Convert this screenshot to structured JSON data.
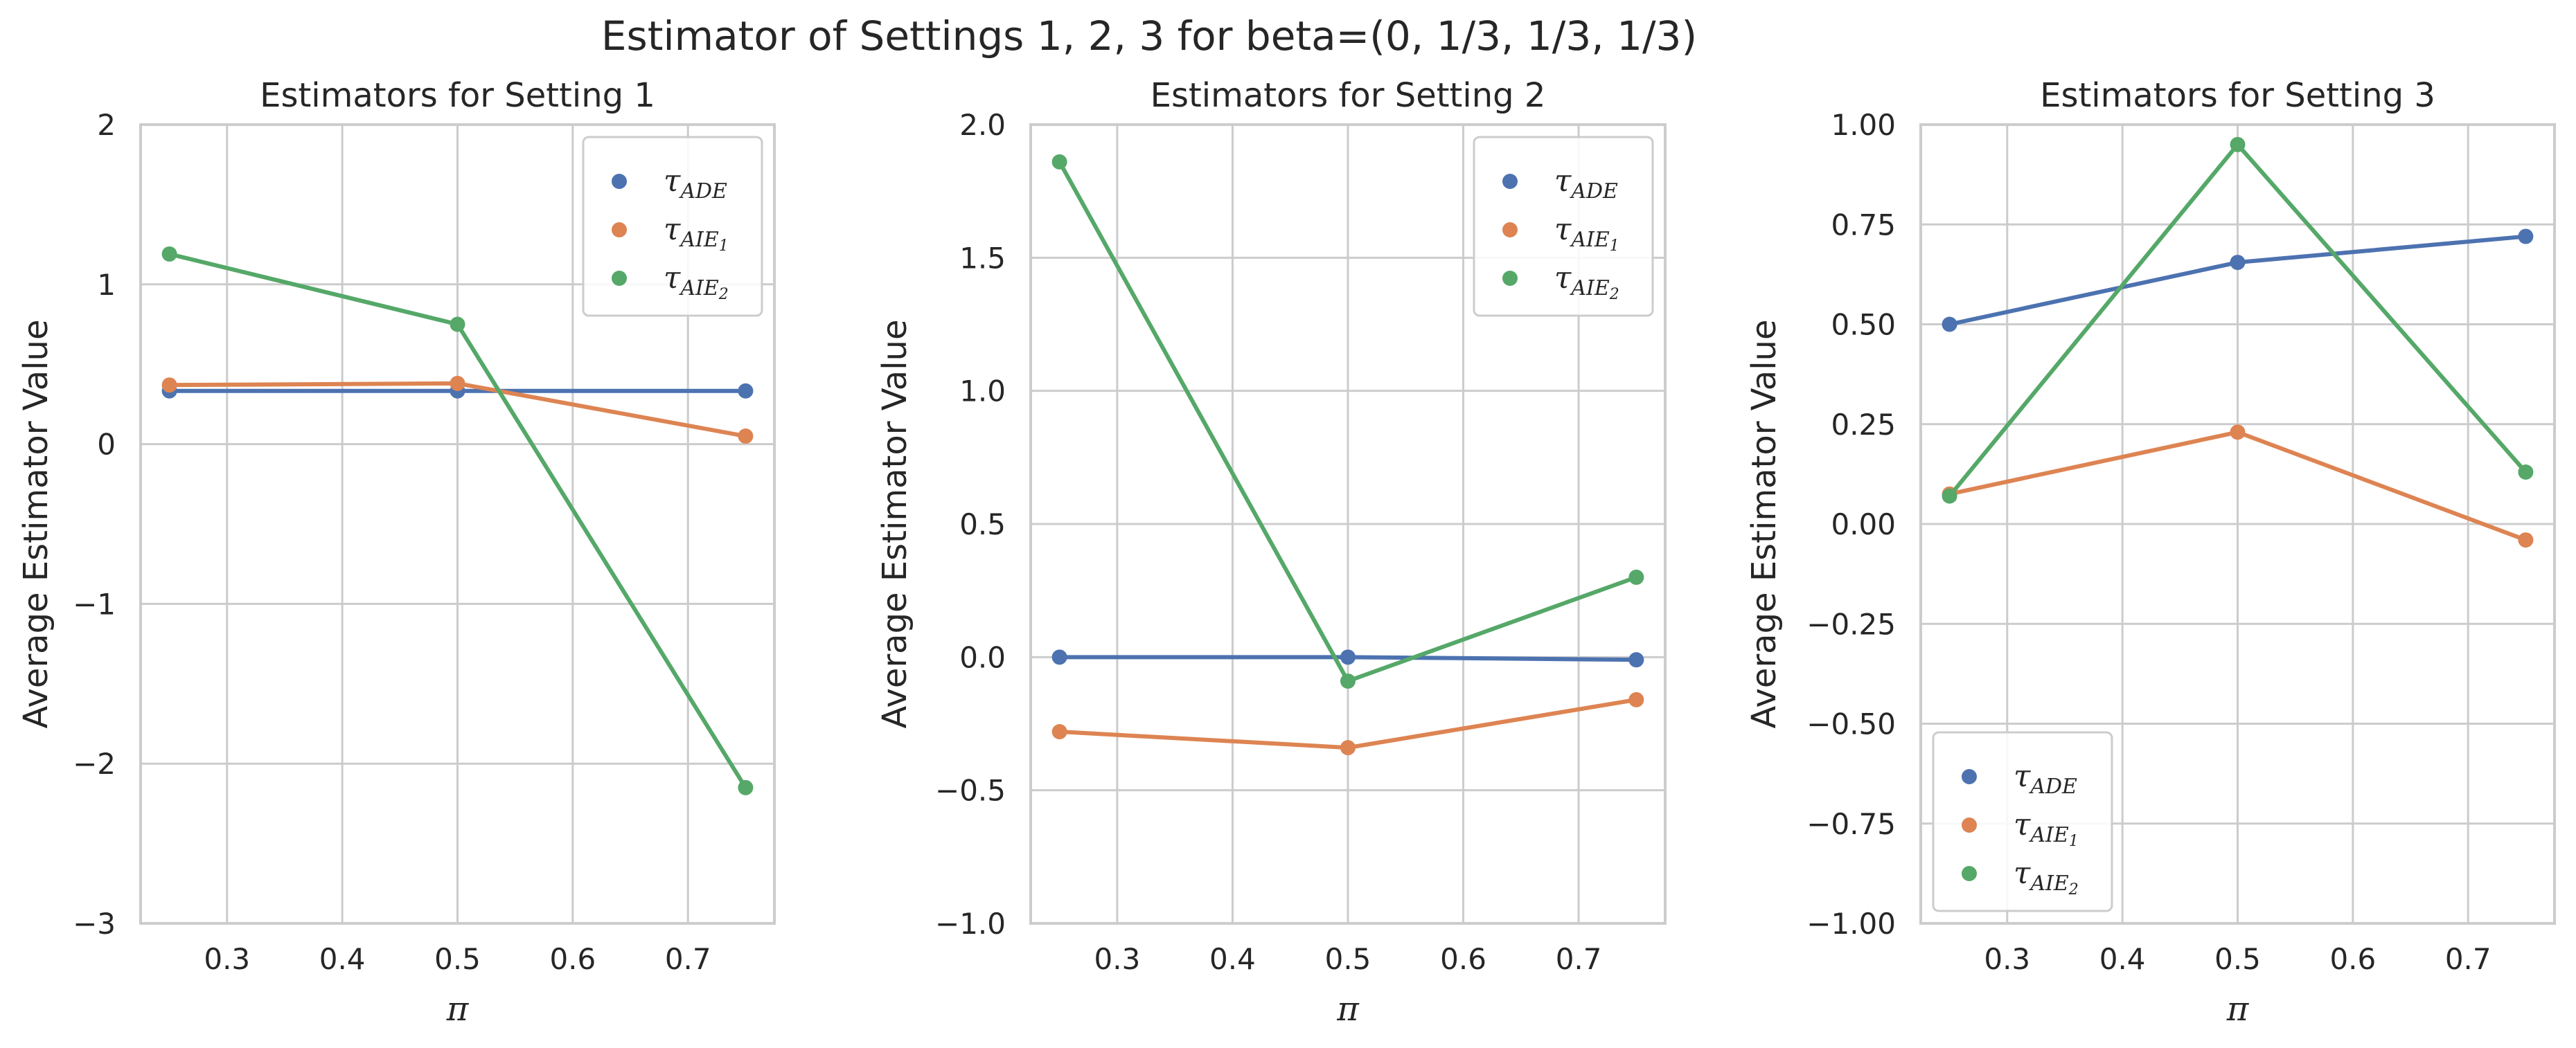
{
  "figure": {
    "title": "Estimator of Settings 1, 2, 3 for beta=(0, 1/3, 1/3, 1/3)"
  },
  "colors": {
    "tau_ADE": "#4c72b0",
    "tau_AIE1": "#dd8452",
    "tau_AIE2": "#55a868",
    "grid": "#cccccc",
    "spine": "#cccccc",
    "text": "#262626"
  },
  "chart_data": [
    {
      "type": "line",
      "title": "Estimators for Setting 1",
      "xlabel": "π",
      "ylabel": "Average Estimator Value",
      "x": [
        0.25,
        0.5,
        0.75
      ],
      "xlim": [
        0.225,
        0.775
      ],
      "ylim": [
        -3,
        2
      ],
      "xticks": [
        0.3,
        0.4,
        0.5,
        0.6,
        0.7
      ],
      "xtick_labels": [
        "0.3",
        "0.4",
        "0.5",
        "0.6",
        "0.7"
      ],
      "yticks": [
        -3,
        -2,
        -1,
        0,
        1,
        2
      ],
      "ytick_labels": [
        "−3",
        "−2",
        "−1",
        "0",
        "1",
        "2"
      ],
      "grid": true,
      "legend_loc": "upper right",
      "series": [
        {
          "name": "τ_ADE",
          "values": [
            0.333,
            0.333,
            0.333
          ]
        },
        {
          "name": "τ_AIE1",
          "values": [
            0.37,
            0.38,
            0.05
          ]
        },
        {
          "name": "τ_AIE2",
          "values": [
            1.19,
            0.75,
            -2.15
          ]
        }
      ]
    },
    {
      "type": "line",
      "title": "Estimators for Setting 2",
      "xlabel": "π",
      "ylabel": "Average Estimator Value",
      "x": [
        0.25,
        0.5,
        0.75
      ],
      "xlim": [
        0.225,
        0.775
      ],
      "ylim": [
        -1,
        2
      ],
      "xticks": [
        0.3,
        0.4,
        0.5,
        0.6,
        0.7
      ],
      "xtick_labels": [
        "0.3",
        "0.4",
        "0.5",
        "0.6",
        "0.7"
      ],
      "yticks": [
        -1.0,
        -0.5,
        0.0,
        0.5,
        1.0,
        1.5,
        2.0
      ],
      "ytick_labels": [
        "−1.0",
        "−0.5",
        "0.0",
        "0.5",
        "1.0",
        "1.5",
        "2.0"
      ],
      "grid": true,
      "legend_loc": "upper right",
      "series": [
        {
          "name": "τ_ADE",
          "values": [
            0.0,
            0.0,
            -0.01
          ]
        },
        {
          "name": "τ_AIE1",
          "values": [
            -0.28,
            -0.34,
            -0.16
          ]
        },
        {
          "name": "τ_AIE2",
          "values": [
            1.86,
            -0.09,
            0.3
          ]
        }
      ]
    },
    {
      "type": "line",
      "title": "Estimators for Setting 3",
      "xlabel": "π",
      "ylabel": "Average Estimator Value",
      "x": [
        0.25,
        0.5,
        0.75
      ],
      "xlim": [
        0.225,
        0.775
      ],
      "ylim": [
        -1,
        1
      ],
      "xticks": [
        0.3,
        0.4,
        0.5,
        0.6,
        0.7
      ],
      "xtick_labels": [
        "0.3",
        "0.4",
        "0.5",
        "0.6",
        "0.7"
      ],
      "yticks": [
        -1.0,
        -0.75,
        -0.5,
        -0.25,
        0.0,
        0.25,
        0.5,
        0.75,
        1.0
      ],
      "ytick_labels": [
        "−1.00",
        "−0.75",
        "−0.50",
        "−0.25",
        "0.00",
        "0.25",
        "0.50",
        "0.75",
        "1.00"
      ],
      "grid": true,
      "legend_loc": "lower left",
      "series": [
        {
          "name": "τ_ADE",
          "values": [
            0.5,
            0.655,
            0.72
          ]
        },
        {
          "name": "τ_AIE1",
          "values": [
            0.075,
            0.23,
            -0.04
          ]
        },
        {
          "name": "τ_AIE2",
          "values": [
            0.07,
            0.95,
            0.13
          ]
        }
      ]
    }
  ]
}
